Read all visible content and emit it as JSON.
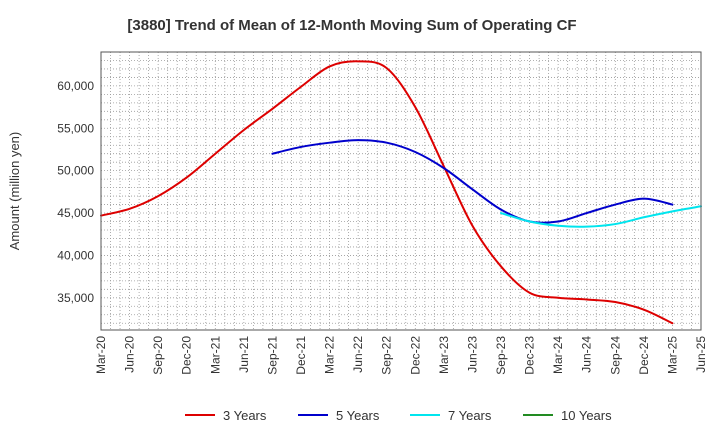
{
  "chart_data": {
    "type": "line",
    "title": "[3880]  Trend of Mean of 12-Month Moving Sum of Operating CF",
    "xlabel": "",
    "ylabel": "Amount (million yen)",
    "ylim": [
      31200,
      64000
    ],
    "yticks": [
      35000,
      40000,
      45000,
      50000,
      55000,
      60000
    ],
    "ytick_labels": [
      "35,000",
      "40,000",
      "45,000",
      "50,000",
      "55,000",
      "60,000"
    ],
    "x_labels": [
      "Mar-20",
      "Jun-20",
      "Sep-20",
      "Dec-20",
      "Mar-21",
      "Jun-21",
      "Sep-21",
      "Dec-21",
      "Mar-22",
      "Jun-22",
      "Sep-22",
      "Dec-22",
      "Mar-23",
      "Jun-23",
      "Sep-23",
      "Dec-23",
      "Mar-24",
      "Jun-24",
      "Sep-24",
      "Dec-24",
      "Mar-25",
      "Jun-25"
    ],
    "grid": true,
    "legend_position": "bottom",
    "series": [
      {
        "name": "3 Years",
        "color": "#dd0000",
        "start_index": 0,
        "values": [
          44700,
          45500,
          47000,
          49200,
          52000,
          54800,
          57300,
          59900,
          62300,
          62900,
          62100,
          57500,
          50500,
          43500,
          38700,
          35600,
          35000,
          34800,
          34500,
          33600,
          32000
        ]
      },
      {
        "name": "5 Years",
        "color": "#0000cc",
        "start_index": 6,
        "values": [
          52000,
          52800,
          53300,
          53600,
          53300,
          52200,
          50300,
          47800,
          45400,
          44000,
          44000,
          45000,
          46000,
          46700,
          46000
        ]
      },
      {
        "name": "7 Years",
        "color": "#00e5ee",
        "start_index": 14,
        "values": [
          45000,
          44000,
          43500,
          43400,
          43700,
          44500,
          45200,
          45800
        ]
      },
      {
        "name": "10 Years",
        "color": "#228b22",
        "start_index": 0,
        "values": []
      }
    ]
  }
}
